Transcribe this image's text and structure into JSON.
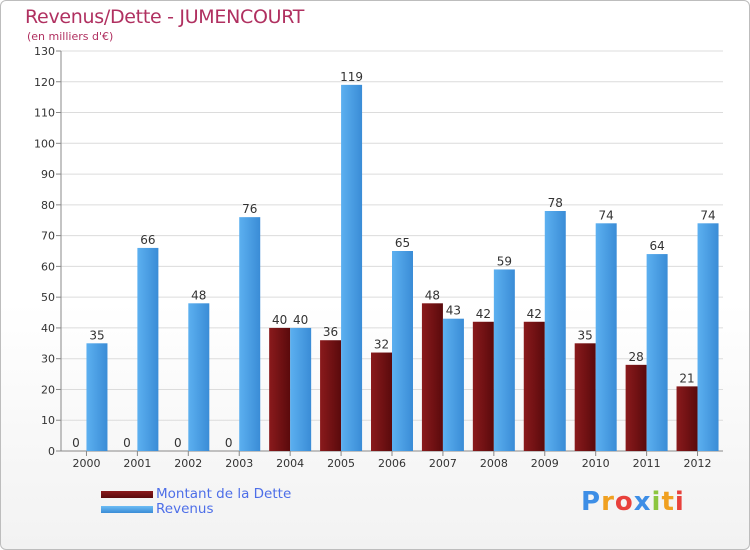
{
  "chart_data": {
    "type": "bar",
    "title": "Revenus/Dette - JUMENCOURT",
    "subtitle": "(en milliers d'€)",
    "categories": [
      "2000",
      "2001",
      "2002",
      "2003",
      "2004",
      "2005",
      "2006",
      "2007",
      "2008",
      "2009",
      "2010",
      "2011",
      "2012"
    ],
    "series": [
      {
        "name": "Montant de la Dette",
        "color": "#6e0f12",
        "values": [
          0,
          0,
          0,
          0,
          40,
          36,
          32,
          48,
          42,
          42,
          35,
          28,
          21
        ]
      },
      {
        "name": "Revenus",
        "color": "#4a9fe3",
        "values": [
          35,
          66,
          48,
          76,
          40,
          119,
          65,
          43,
          59,
          78,
          74,
          64,
          74
        ]
      }
    ],
    "ylim": [
      0,
      130
    ],
    "yticks": [
      0,
      10,
      20,
      30,
      40,
      50,
      60,
      70,
      80,
      90,
      100,
      110,
      120,
      130
    ],
    "grid": true,
    "legend_position": "bottom-left"
  },
  "brand": {
    "letters": [
      "P",
      "r",
      "o",
      "x",
      "i",
      "t",
      "i"
    ],
    "colors": [
      "#3d8ee6",
      "#f0a020",
      "#e8413c",
      "#3d8ee6",
      "#8cc63f",
      "#f0a020",
      "#e8413c"
    ]
  }
}
